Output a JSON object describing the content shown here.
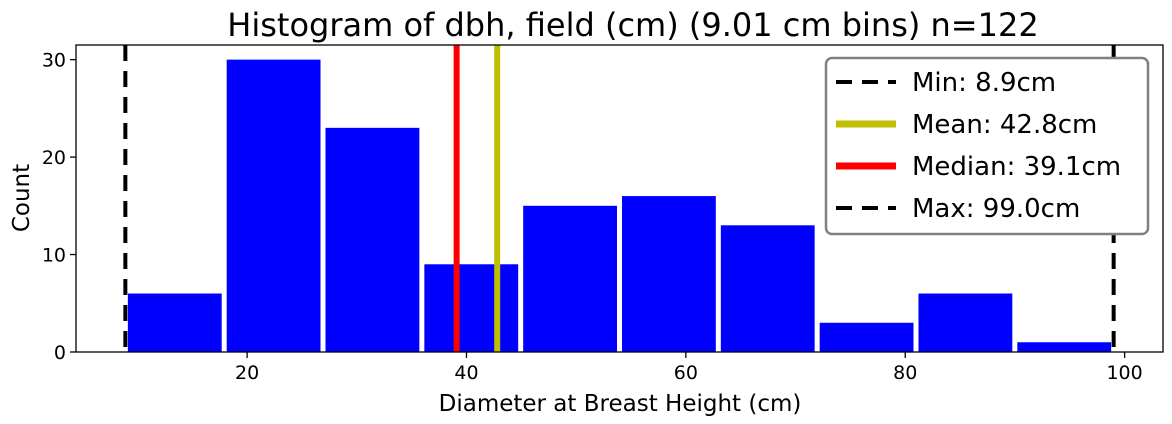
{
  "chart_data": {
    "type": "bar",
    "title": "Histogram of dbh, field (cm) (9.01 cm bins) n=122",
    "xlabel": "Diameter at Breast Height (cm)",
    "ylabel": "Count",
    "xlim": [
      4.4,
      103.5
    ],
    "ylim": [
      0,
      31.5
    ],
    "x_ticks": [
      20,
      40,
      60,
      80,
      100
    ],
    "y_ticks": [
      0,
      10,
      20,
      30
    ],
    "bin_width": 9.01,
    "bins": [
      {
        "start": 8.9,
        "end": 17.91,
        "count": 6
      },
      {
        "start": 17.91,
        "end": 26.92,
        "count": 30
      },
      {
        "start": 26.92,
        "end": 35.93,
        "count": 23
      },
      {
        "start": 35.93,
        "end": 44.94,
        "count": 9
      },
      {
        "start": 44.94,
        "end": 53.95,
        "count": 15
      },
      {
        "start": 53.95,
        "end": 62.96,
        "count": 16
      },
      {
        "start": 62.96,
        "end": 71.97,
        "count": 13
      },
      {
        "start": 71.97,
        "end": 80.98,
        "count": 3
      },
      {
        "start": 80.98,
        "end": 89.99,
        "count": 6
      },
      {
        "start": 89.99,
        "end": 99.0,
        "count": 1
      }
    ],
    "bar_color": "#0000ff",
    "reference_lines": [
      {
        "key": "min",
        "label": "Min: 8.9cm",
        "x": 8.9,
        "color": "#000000",
        "style": "dashed"
      },
      {
        "key": "mean",
        "label": "Mean: 42.8cm",
        "x": 42.8,
        "color": "#bfbf00",
        "style": "solid"
      },
      {
        "key": "median",
        "label": "Median: 39.1cm",
        "x": 39.1,
        "color": "#ff0000",
        "style": "solid"
      },
      {
        "key": "max",
        "label": "Max: 99.0cm",
        "x": 99.0,
        "color": "#000000",
        "style": "dashed"
      }
    ],
    "legend_position": "top-right",
    "grid": false
  }
}
